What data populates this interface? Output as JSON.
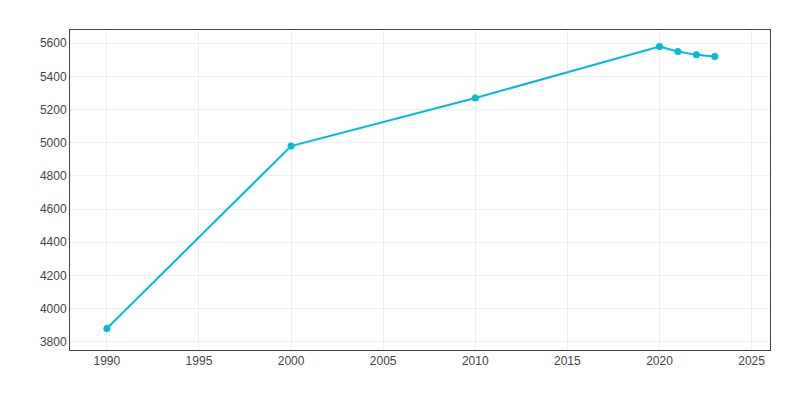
{
  "chart_data": {
    "type": "line",
    "x": [
      1990,
      2000,
      2010,
      2020,
      2021,
      2022,
      2023
    ],
    "values": [
      3880,
      4980,
      5270,
      5580,
      5550,
      5530,
      5520
    ],
    "color": "#00BCD4",
    "marker": "circle",
    "xlim": [
      1988,
      2026
    ],
    "ylim": [
      3750,
      5680
    ],
    "xticks": [
      1990,
      1995,
      2000,
      2005,
      2010,
      2015,
      2020,
      2025
    ],
    "yticks": [
      3800,
      4000,
      4200,
      4400,
      4600,
      4800,
      5000,
      5200,
      5400,
      5600
    ],
    "grid": true
  }
}
